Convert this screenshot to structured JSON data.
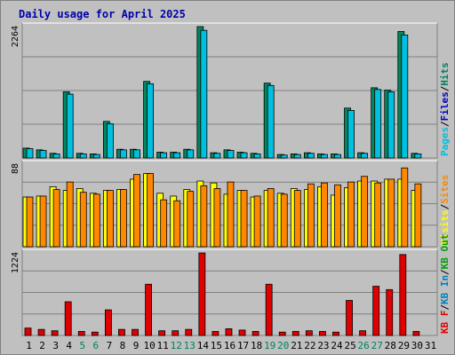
{
  "title": "Daily usage for April 2025",
  "colors": {
    "hits": "#00c0e0",
    "files": "#008860",
    "visits": "#ffff00",
    "sites": "#ff8800",
    "kbytes": "#e00000",
    "weekend": "#008060",
    "axis_text": "#000000"
  },
  "chart_data": [
    {
      "type": "bar",
      "panel": "top",
      "ymax_label": "2264",
      "ylim": [
        0,
        2264
      ],
      "grid": true,
      "legend": {
        "placement": "right",
        "items": [
          "Pages",
          "Files",
          "Hits"
        ],
        "colors": [
          "#00c0e0",
          "#0000c0",
          "#008060"
        ]
      },
      "series": [
        {
          "name": "Files",
          "values": [
            170,
            140,
            80,
            1140,
            80,
            70,
            630,
            150,
            150,
            1320,
            100,
            100,
            150,
            2264,
            90,
            140,
            100,
            80,
            1290,
            60,
            70,
            90,
            70,
            70,
            860,
            90,
            1210,
            1170,
            2180,
            80,
            null
          ]
        },
        {
          "name": "Hits",
          "values": [
            160,
            130,
            70,
            1100,
            70,
            60,
            590,
            140,
            140,
            1280,
            90,
            90,
            140,
            2200,
            80,
            130,
            90,
            70,
            1250,
            50,
            60,
            80,
            60,
            60,
            820,
            80,
            1180,
            1140,
            2120,
            70,
            null
          ]
        }
      ]
    },
    {
      "type": "bar",
      "panel": "middle",
      "ymax_label": "88",
      "ylim": [
        0,
        88
      ],
      "grid": true,
      "legend": {
        "placement": "right",
        "items": [
          "Visits",
          "Sites"
        ],
        "colors": [
          "#ffff00",
          "#ff8800"
        ]
      },
      "series": [
        {
          "name": "Visits",
          "values": [
            53,
            54,
            64,
            60,
            62,
            57,
            60,
            61,
            72,
            78,
            57,
            54,
            61,
            70,
            68,
            56,
            60,
            53,
            60,
            57,
            62,
            61,
            64,
            55,
            63,
            70,
            70,
            72,
            72,
            60,
            null
          ]
        },
        {
          "name": "Sites",
          "values": [
            53,
            54,
            61,
            69,
            58,
            56,
            60,
            61,
            77,
            78,
            50,
            49,
            59,
            65,
            62,
            69,
            60,
            54,
            62,
            56,
            60,
            67,
            68,
            66,
            69,
            75,
            68,
            72,
            84,
            67,
            null
          ]
        }
      ]
    },
    {
      "type": "bar",
      "panel": "bottom",
      "ymax_label": "1224",
      "ylim": [
        0,
        1224
      ],
      "grid": true,
      "legend": {
        "placement": "right",
        "items": [
          "KB F",
          "KB In",
          "KB Out"
        ],
        "colors": [
          "#e00000",
          "#0080c0",
          "#00a000"
        ]
      },
      "series": [
        {
          "name": "KB F",
          "values": [
            110,
            90,
            70,
            500,
            60,
            50,
            380,
            90,
            90,
            760,
            70,
            70,
            90,
            1224,
            60,
            100,
            80,
            60,
            760,
            50,
            60,
            70,
            60,
            50,
            520,
            70,
            730,
            680,
            1200,
            60,
            null
          ]
        }
      ]
    }
  ],
  "days": [
    "1",
    "2",
    "3",
    "4",
    "5",
    "6",
    "7",
    "8",
    "9",
    "10",
    "11",
    "12",
    "13",
    "14",
    "15",
    "16",
    "17",
    "18",
    "19",
    "20",
    "21",
    "22",
    "23",
    "24",
    "25",
    "26",
    "27",
    "28",
    "29",
    "30",
    "31"
  ],
  "weekend_days": [
    5,
    6,
    12,
    13,
    19,
    20,
    26,
    27
  ],
  "side_labels": {
    "top": [
      "Pages",
      "/",
      "Files",
      "/",
      "Hits"
    ],
    "middle": [
      "Visits",
      "/",
      "Sites"
    ],
    "bottom": [
      "KB F",
      "/",
      "KB In",
      "/",
      "KB Out"
    ]
  }
}
